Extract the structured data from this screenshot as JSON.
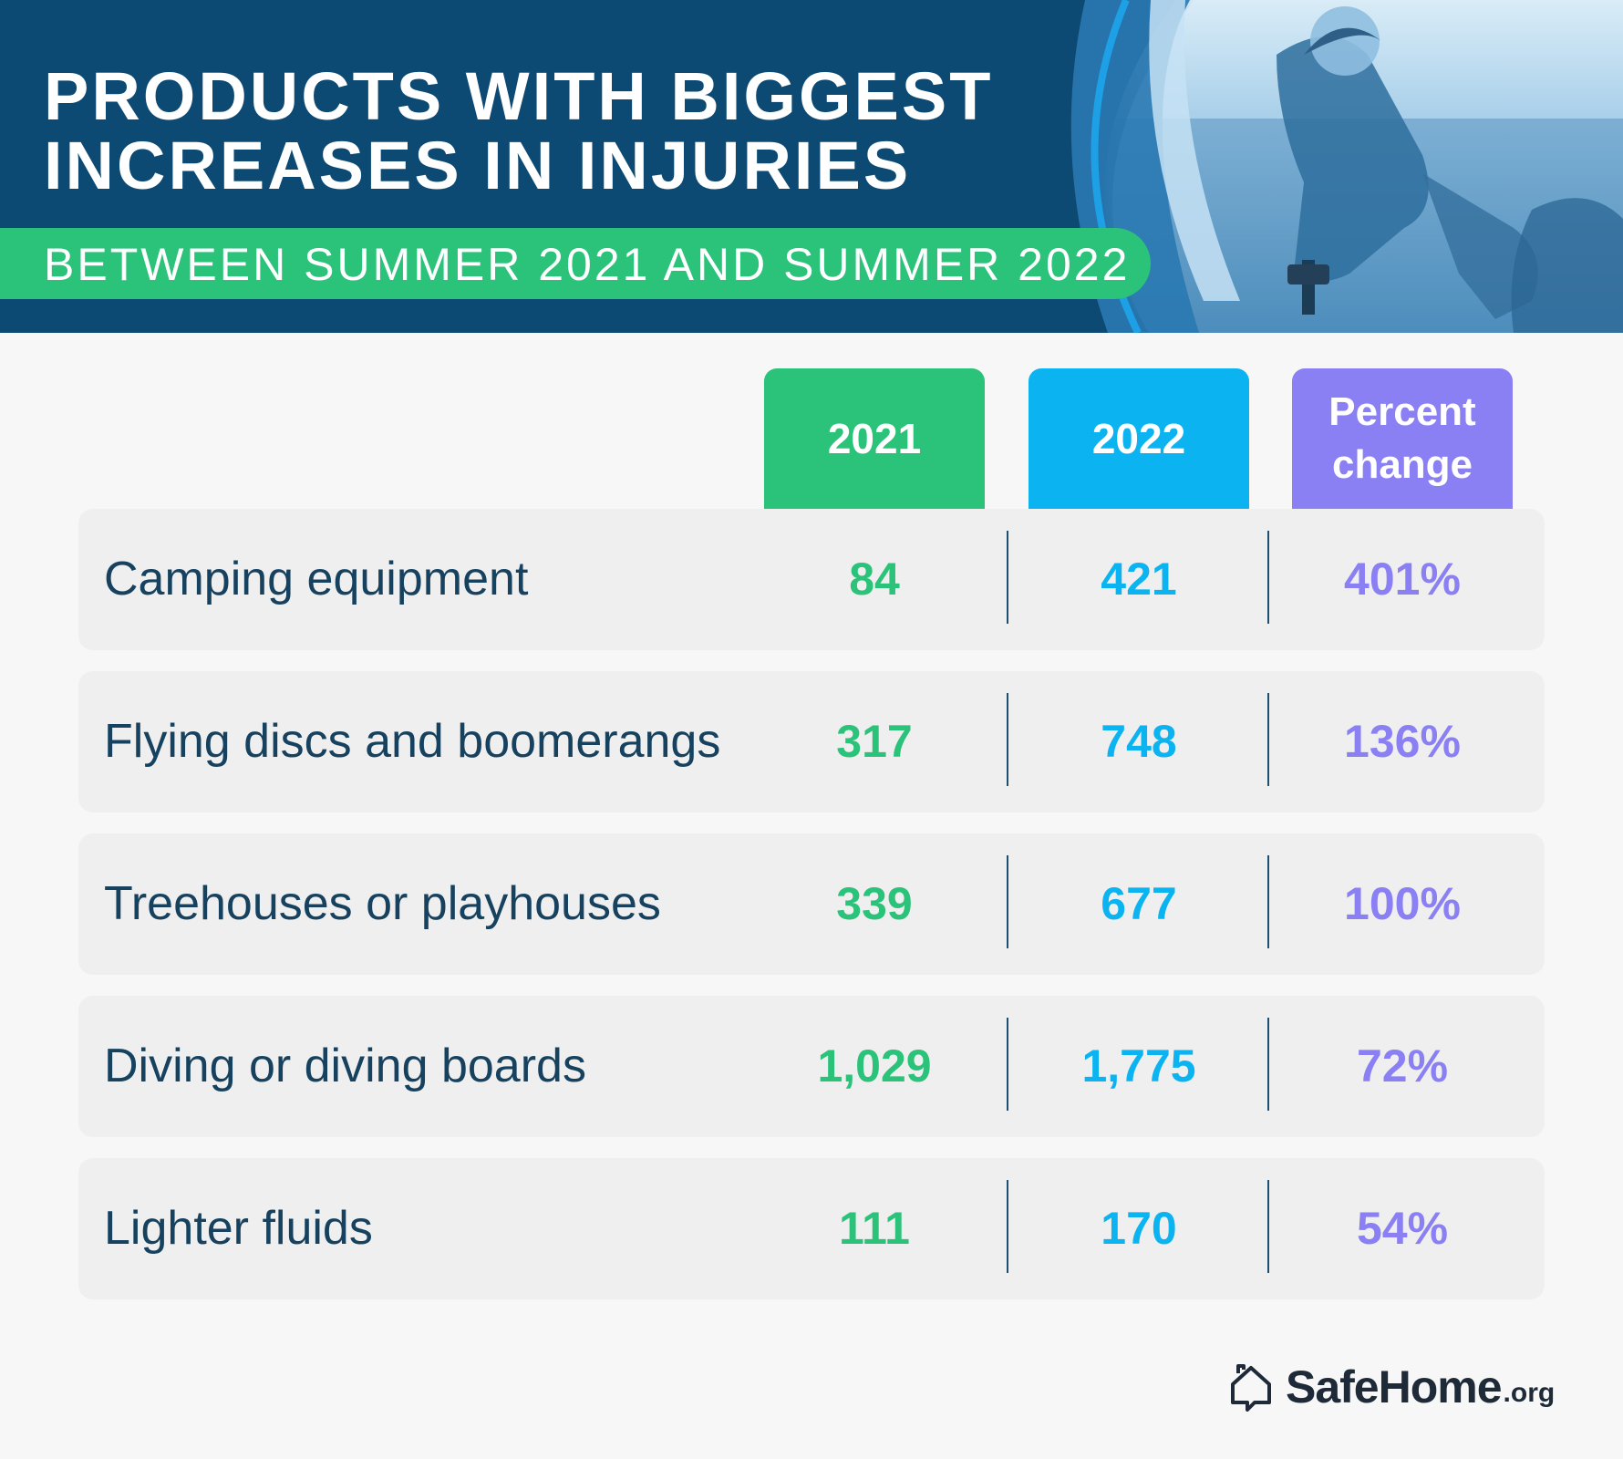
{
  "header": {
    "title_lines": [
      "PRODUCTS WITH BIGGEST",
      "INCREASES IN INJURIES"
    ],
    "subtitle": "BETWEEN SUMMER 2021 AND SUMMER 2022"
  },
  "colors": {
    "header_bg": "#0d4a73",
    "green": "#2bc27a",
    "blue": "#0bb4f0",
    "purple": "#8a80f3",
    "label_text": "#17425f"
  },
  "chart_data": {
    "type": "table",
    "title": "PRODUCTS WITH BIGGEST INCREASES IN INJURIES",
    "subtitle": "BETWEEN SUMMER 2021 AND SUMMER 2022",
    "columns": [
      "2021",
      "2022",
      "Percent change"
    ],
    "rows": [
      {
        "product": "Camping equipment",
        "y2021": "84",
        "y2022": "421",
        "change": "401%"
      },
      {
        "product": "Flying discs and boomerangs",
        "y2021": "317",
        "y2022": "748",
        "change": "136%"
      },
      {
        "product": "Treehouses or playhouses",
        "y2021": "339",
        "y2022": "677",
        "change": "100%"
      },
      {
        "product": "Diving or diving boards",
        "y2021": "1,029",
        "y2022": "1,775",
        "change": "72%"
      },
      {
        "product": "Lighter fluids",
        "y2021": "111",
        "y2022": "170",
        "change": "54%"
      }
    ]
  },
  "footer": {
    "brand_icon": "house-chat-icon",
    "brand_name": "SafeHome",
    "brand_tld": ".org"
  }
}
